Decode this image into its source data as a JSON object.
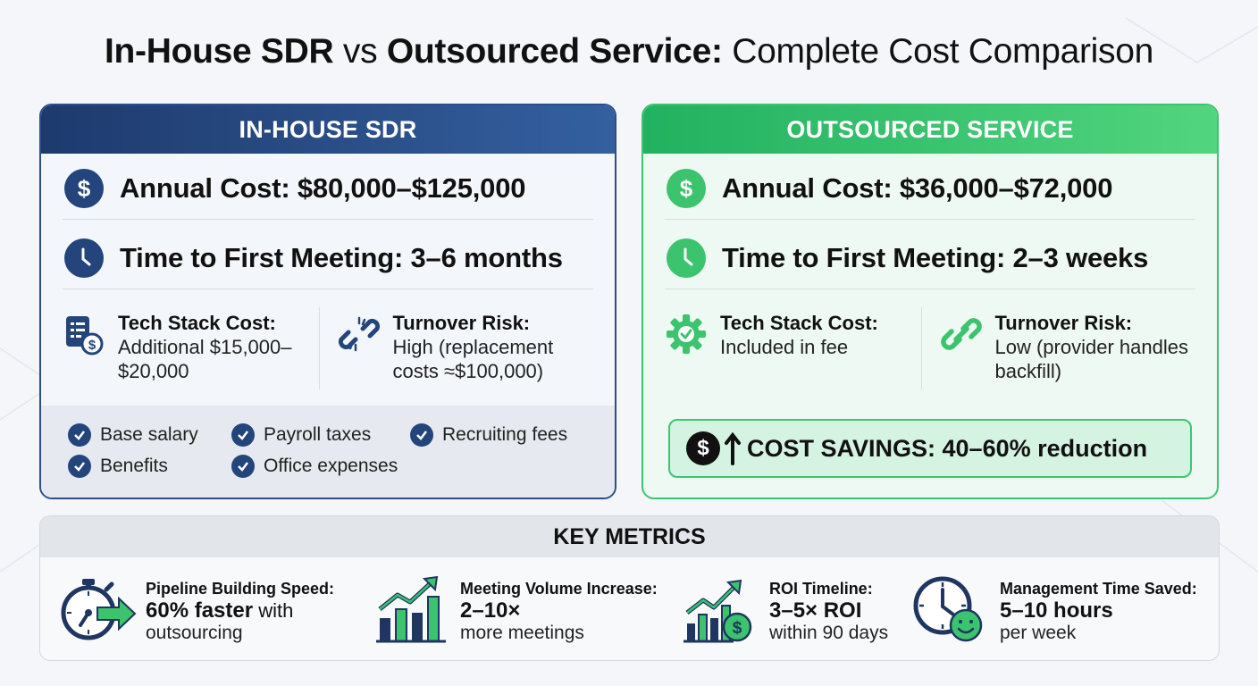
{
  "title": {
    "part1": "In-House SDR",
    "part2": "vs",
    "part3": "Outsourced Service:",
    "part4": "Complete Cost Comparison"
  },
  "inhouse": {
    "header": "IN-HOUSE SDR",
    "annual_cost": "Annual Cost: $80,000–$125,000",
    "time_to_meeting": "Time to First Meeting: 3–6 months",
    "tech_stack_label": "Tech Stack Cost:",
    "tech_stack_value_1": "Additional $15,000–",
    "tech_stack_value_2": "$20,000",
    "turnover_label": "Turnover Risk:",
    "turnover_value_1": "High (replacement",
    "turnover_value_2": "costs ≈$100,000)",
    "checks": [
      "Base salary",
      "Payroll taxes",
      "Recruiting fees",
      "Benefits",
      "Office expenses"
    ]
  },
  "outsourced": {
    "header": "OUTSOURCED SERVICE",
    "annual_cost": "Annual Cost: $36,000–$72,000",
    "time_to_meeting": "Time to First Meeting: 2–3 weeks",
    "tech_stack_label": "Tech Stack Cost:",
    "tech_stack_value_1": "Included in fee",
    "turnover_label": "Turnover Risk:",
    "turnover_value_1": "Low (provider handles",
    "turnover_value_2": "backfill)",
    "savings": "COST SAVINGS: 40–60% reduction",
    "savings_dollar": "$"
  },
  "metrics": {
    "header": "KEY METRICS",
    "items": [
      {
        "label": "Pipeline Building Speed:",
        "value": "60% faster",
        "value_suffix": " with",
        "sub": "outsourcing",
        "icon": "stopwatch-arrow-icon"
      },
      {
        "label": "Meeting Volume Increase:",
        "value": "2–10×",
        "value_suffix": "",
        "sub": "more meetings",
        "icon": "bar-chart-growth-icon"
      },
      {
        "label": "ROI Timeline:",
        "value": "3–5× ROI",
        "value_suffix": "",
        "sub": "within 90 days",
        "icon": "chart-dollar-icon"
      },
      {
        "label": "Management Time Saved:",
        "value": "5–10 hours",
        "value_suffix": "",
        "sub": "per week",
        "icon": "clock-smile-icon"
      }
    ]
  },
  "colors": {
    "navy": "#24457b",
    "green": "#3cc36e"
  }
}
